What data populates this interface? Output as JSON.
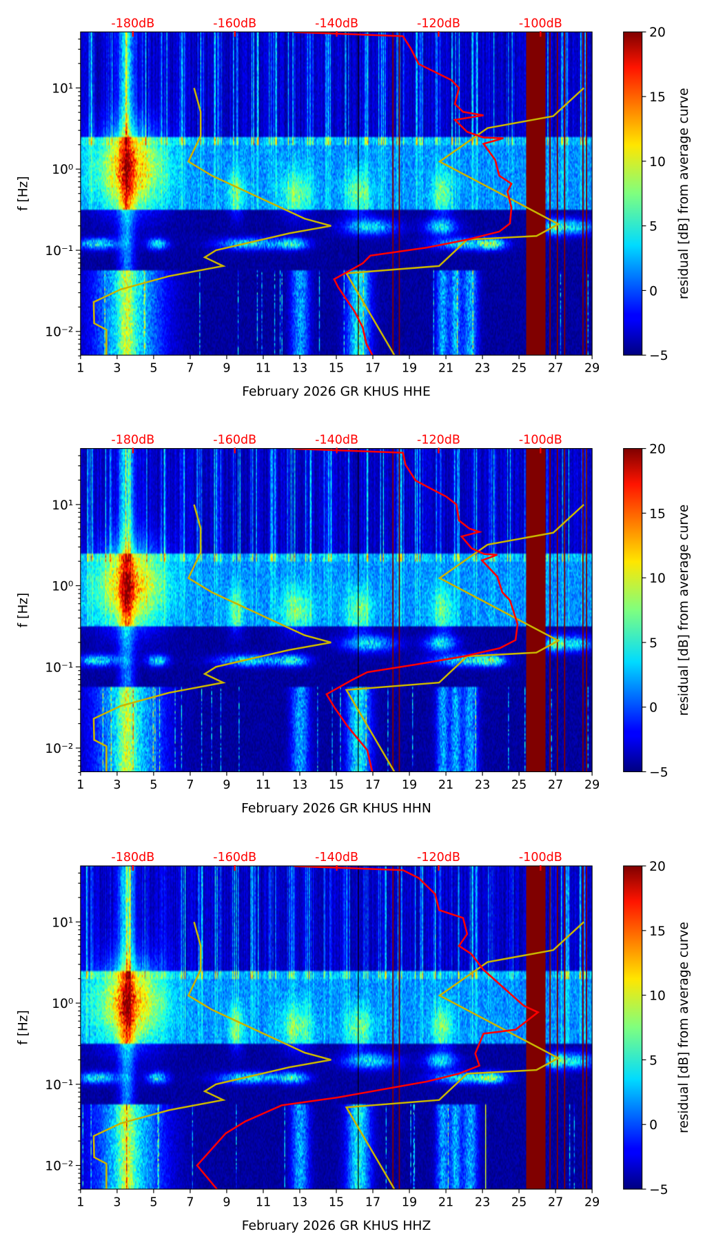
{
  "chart_data": {
    "type": "heatmap",
    "figure_count": 3,
    "x_axis": {
      "label_prefix": "February 2026 GR KHUS",
      "ticks": [
        1,
        3,
        5,
        7,
        9,
        11,
        13,
        15,
        17,
        19,
        21,
        23,
        25,
        27,
        29
      ],
      "tick_labels": [
        "1",
        "3",
        "5",
        "7",
        "9",
        "11",
        "13",
        "15",
        "17",
        "19",
        "21",
        "23",
        "25",
        "27",
        "29"
      ],
      "range": [
        1,
        29
      ],
      "units": "day of month"
    },
    "top_axis": {
      "ticks_db": [
        -180,
        -160,
        -140,
        -120,
        -100
      ],
      "tick_labels": [
        "-180dB",
        "-160dB",
        "-140dB",
        "-120dB",
        "-100dB"
      ],
      "color": "#ff0000"
    },
    "y_axis": {
      "label": "f [Hz]",
      "scale": "log",
      "range": [
        0.005,
        49
      ],
      "ticks": [
        10,
        1,
        0.1,
        0.01
      ],
      "tick_labels": [
        "10¹",
        "10⁰",
        "10⁻¹",
        "10⁻²"
      ]
    },
    "colorbar": {
      "label": "residual [dB] from average curve",
      "range": [
        -5,
        20
      ],
      "ticks": [
        -5,
        0,
        5,
        10,
        15,
        20
      ],
      "tick_labels": [
        "−5",
        "0",
        "5",
        "10",
        "15",
        "20"
      ],
      "colormap": "jet"
    },
    "reference_lines": {
      "black_day": 16.2,
      "gap_band_days": [
        25.4,
        26.4
      ],
      "gap_line_days": [
        18.1,
        18.45,
        26.7,
        27.1,
        27.5,
        28.5,
        28.7
      ],
      "gap_color": "#800000",
      "model_color": "#c8b400",
      "curve_color": "#ff0000"
    },
    "nlnm": [
      [
        10,
        -168
      ],
      [
        5.07,
        -166.7
      ],
      [
        2.57,
        -166.7
      ],
      [
        1.24,
        -169.1
      ],
      [
        0.83,
        -164.5
      ],
      [
        0.245,
        -146.3
      ],
      [
        0.2,
        -141.1
      ],
      [
        0.162,
        -149.3
      ],
      [
        0.1,
        -163.7
      ],
      [
        0.082,
        -165.9
      ],
      [
        0.064,
        -162.3
      ],
      [
        0.048,
        -172.9
      ],
      [
        0.033,
        -182.4
      ],
      [
        0.023,
        -187.7
      ],
      [
        0.0126,
        -187.6
      ],
      [
        0.0105,
        -185.2
      ],
      [
        0.005,
        -185.2
      ]
    ],
    "nhnm": [
      [
        10,
        -91.5
      ],
      [
        4.5,
        -97.5
      ],
      [
        3.2,
        -110.4
      ],
      [
        1.24,
        -119.8
      ],
      [
        0.21,
        -96.5
      ],
      [
        0.15,
        -100.8
      ],
      [
        0.135,
        -114.4
      ],
      [
        0.064,
        -119.9
      ],
      [
        0.052,
        -138.1
      ],
      [
        0.005,
        -128.6
      ]
    ],
    "panels": [
      {
        "channel": "HHE",
        "xlabel": "February 2026 GR KHUS  HHE",
        "average_curve": [
          [
            48.8,
            -148.4
          ],
          [
            43.5,
            -127.0
          ],
          [
            30.9,
            -125.5
          ],
          [
            19.7,
            -123.9
          ],
          [
            15.7,
            -120.7
          ],
          [
            12.5,
            -117.5
          ],
          [
            10,
            -116.0
          ],
          [
            6.36,
            -116.8
          ],
          [
            5.07,
            -115.2
          ],
          [
            4.6,
            -111.2
          ],
          [
            4.04,
            -116.8
          ],
          [
            2.88,
            -114.4
          ],
          [
            2.45,
            -111.2
          ],
          [
            2.4,
            -107.3
          ],
          [
            2.05,
            -111.2
          ],
          [
            1.3,
            -108.9
          ],
          [
            0.83,
            -108.1
          ],
          [
            0.66,
            -105.7
          ],
          [
            0.53,
            -106.5
          ],
          [
            0.335,
            -105.7
          ],
          [
            0.214,
            -106.0
          ],
          [
            0.17,
            -108.1
          ],
          [
            0.135,
            -114.4
          ],
          [
            0.108,
            -122.3
          ],
          [
            0.086,
            -133.4
          ],
          [
            0.069,
            -134.9
          ],
          [
            0.044,
            -140.5
          ],
          [
            0.035,
            -139.7
          ],
          [
            0.0248,
            -138.1
          ],
          [
            0.0177,
            -136.5
          ],
          [
            0.0112,
            -134.9
          ],
          [
            0.0071,
            -134.2
          ],
          [
            0.0051,
            -133.0
          ]
        ]
      },
      {
        "channel": "HHN",
        "xlabel": "February 2026 GR KHUS  HHN",
        "average_curve": [
          [
            48.8,
            -148.4
          ],
          [
            43.5,
            -127.0
          ],
          [
            30.9,
            -126.5
          ],
          [
            19.7,
            -124.5
          ],
          [
            15.7,
            -121.5
          ],
          [
            12.5,
            -118.5
          ],
          [
            10,
            -116.5
          ],
          [
            6.36,
            -116.0
          ],
          [
            5.07,
            -114.0
          ],
          [
            4.6,
            -112.0
          ],
          [
            4.04,
            -115.5
          ],
          [
            2.88,
            -113.5
          ],
          [
            2.45,
            -111.0
          ],
          [
            2.4,
            -108.5
          ],
          [
            2.05,
            -111.5
          ],
          [
            1.3,
            -108.5
          ],
          [
            0.83,
            -107.5
          ],
          [
            0.66,
            -106.0
          ],
          [
            0.53,
            -105.5
          ],
          [
            0.335,
            -104.5
          ],
          [
            0.214,
            -104.9
          ],
          [
            0.17,
            -108.0
          ],
          [
            0.135,
            -115.0
          ],
          [
            0.108,
            -124.0
          ],
          [
            0.086,
            -134.0
          ],
          [
            0.069,
            -137.0
          ],
          [
            0.046,
            -142.0
          ],
          [
            0.032,
            -140.5
          ],
          [
            0.019,
            -138.0
          ],
          [
            0.0094,
            -134.0
          ],
          [
            0.005,
            -133.0
          ]
        ]
      },
      {
        "channel": "HHZ",
        "xlabel": "February 2026 GR KHUS  HHZ",
        "average_curve": [
          [
            48.8,
            -148.4
          ],
          [
            43.5,
            -127.0
          ],
          [
            34.7,
            -123.9
          ],
          [
            22.1,
            -120.7
          ],
          [
            14.0,
            -119.9
          ],
          [
            11.2,
            -115.2
          ],
          [
            7.1,
            -114.4
          ],
          [
            5.07,
            -116.0
          ],
          [
            4.04,
            -113.6
          ],
          [
            2.57,
            -111.2
          ],
          [
            0.93,
            -103.3
          ],
          [
            0.77,
            -100.5
          ],
          [
            0.47,
            -104.9
          ],
          [
            0.42,
            -111.2
          ],
          [
            0.239,
            -112.8
          ],
          [
            0.17,
            -112.0
          ],
          [
            0.135,
            -116.0
          ],
          [
            0.108,
            -122.3
          ],
          [
            0.069,
            -139.7
          ],
          [
            0.055,
            -150.8
          ],
          [
            0.035,
            -157.9
          ],
          [
            0.0248,
            -161.8
          ],
          [
            0.01,
            -167.4
          ],
          [
            0.005,
            -163.4
          ]
        ]
      }
    ]
  }
}
